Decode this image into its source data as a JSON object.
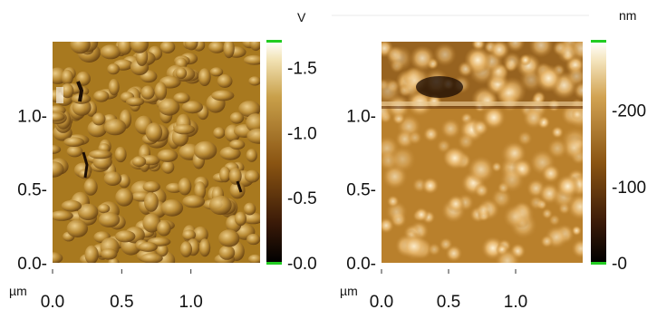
{
  "panels": [
    {
      "id": "amplitude",
      "colorbar": {
        "unit": "V",
        "range": [
          0.0,
          1.7
        ],
        "ticks": [
          {
            "value": 0.0,
            "label": "-0.0"
          },
          {
            "value": 0.5,
            "label": "-0.5"
          },
          {
            "value": 1.0,
            "label": "-1.0"
          },
          {
            "value": 1.5,
            "label": "-1.5"
          }
        ]
      },
      "x_unit": "µm",
      "x_range": [
        0.0,
        1.5
      ],
      "x_ticks": [
        {
          "value": 0.0,
          "label": "0.0"
        },
        {
          "value": 0.5,
          "label": "0.5"
        },
        {
          "value": 1.0,
          "label": "1.0"
        }
      ],
      "y_range": [
        0.0,
        1.5
      ],
      "y_ticks": [
        {
          "value": 0.0,
          "label": "0.0-"
        },
        {
          "value": 0.5,
          "label": "0.5-"
        },
        {
          "value": 1.0,
          "label": "1.0-"
        }
      ]
    },
    {
      "id": "height",
      "colorbar": {
        "unit": "nm",
        "range": [
          0,
          290
        ],
        "ticks": [
          {
            "value": 0,
            "label": "-0"
          },
          {
            "value": 100,
            "label": "-100"
          },
          {
            "value": 200,
            "label": "-200"
          }
        ]
      },
      "x_unit": "µm",
      "x_range": [
        0.0,
        1.5
      ],
      "x_ticks": [
        {
          "value": 0.0,
          "label": "0.0"
        },
        {
          "value": 0.5,
          "label": "0.5"
        },
        {
          "value": 1.0,
          "label": "1.0"
        }
      ],
      "y_range": [
        0.0,
        1.5
      ],
      "y_ticks": [
        {
          "value": 0.0,
          "label": "0.0-"
        },
        {
          "value": 0.5,
          "label": "0.5-"
        },
        {
          "value": 1.0,
          "label": "1.0-"
        }
      ]
    }
  ],
  "colors": {
    "marker_green": "#22cc22",
    "amp_base": "#a8791f",
    "height_base": "#b9802c"
  }
}
